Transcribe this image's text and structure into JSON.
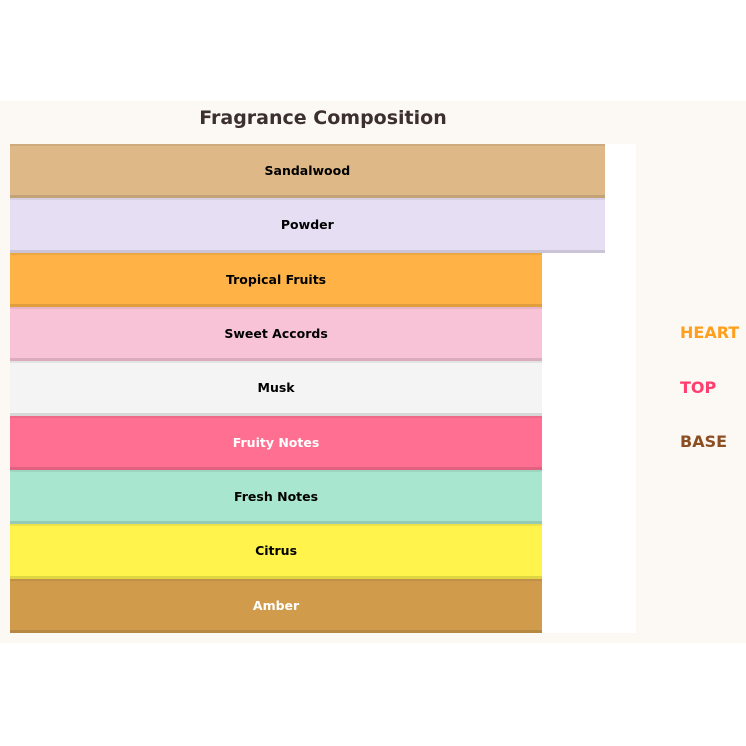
{
  "chart_data": {
    "type": "bar",
    "orientation": "horizontal-stacked-layers",
    "title": "Fragrance Composition",
    "value_unit": "fraction of plot width",
    "layers": [
      {
        "label": "Sandalwood",
        "value": 0.95,
        "color": "#deb887",
        "text_color": "#000000"
      },
      {
        "label": "Powder",
        "value": 0.95,
        "color": "#e6dff3",
        "text_color": "#000000"
      },
      {
        "label": "Tropical Fruits",
        "value": 0.85,
        "color": "#ffb347",
        "text_color": "#000000"
      },
      {
        "label": "Sweet Accords",
        "value": 0.85,
        "color": "#f8c3d6",
        "text_color": "#000000"
      },
      {
        "label": "Musk",
        "value": 0.85,
        "color": "#f4f4f4",
        "text_color": "#000000"
      },
      {
        "label": "Fruity Notes",
        "value": 0.85,
        "color": "#ff6f91",
        "text_color": "#ffffff"
      },
      {
        "label": "Fresh Notes",
        "value": 0.85,
        "color": "#a8e6cf",
        "text_color": "#000000"
      },
      {
        "label": "Citrus",
        "value": 0.85,
        "color": "#fff34c",
        "text_color": "#000000"
      },
      {
        "label": "Amber",
        "value": 0.85,
        "color": "#d09b4b",
        "text_color": "#ffffff"
      }
    ],
    "legend": {
      "placement": "right",
      "items": [
        {
          "label": "HEART",
          "color": "#ff9f1c"
        },
        {
          "label": "TOP",
          "color": "#ff3d6e"
        },
        {
          "label": "BASE",
          "color": "#8b4f23"
        }
      ]
    },
    "grid": false
  }
}
